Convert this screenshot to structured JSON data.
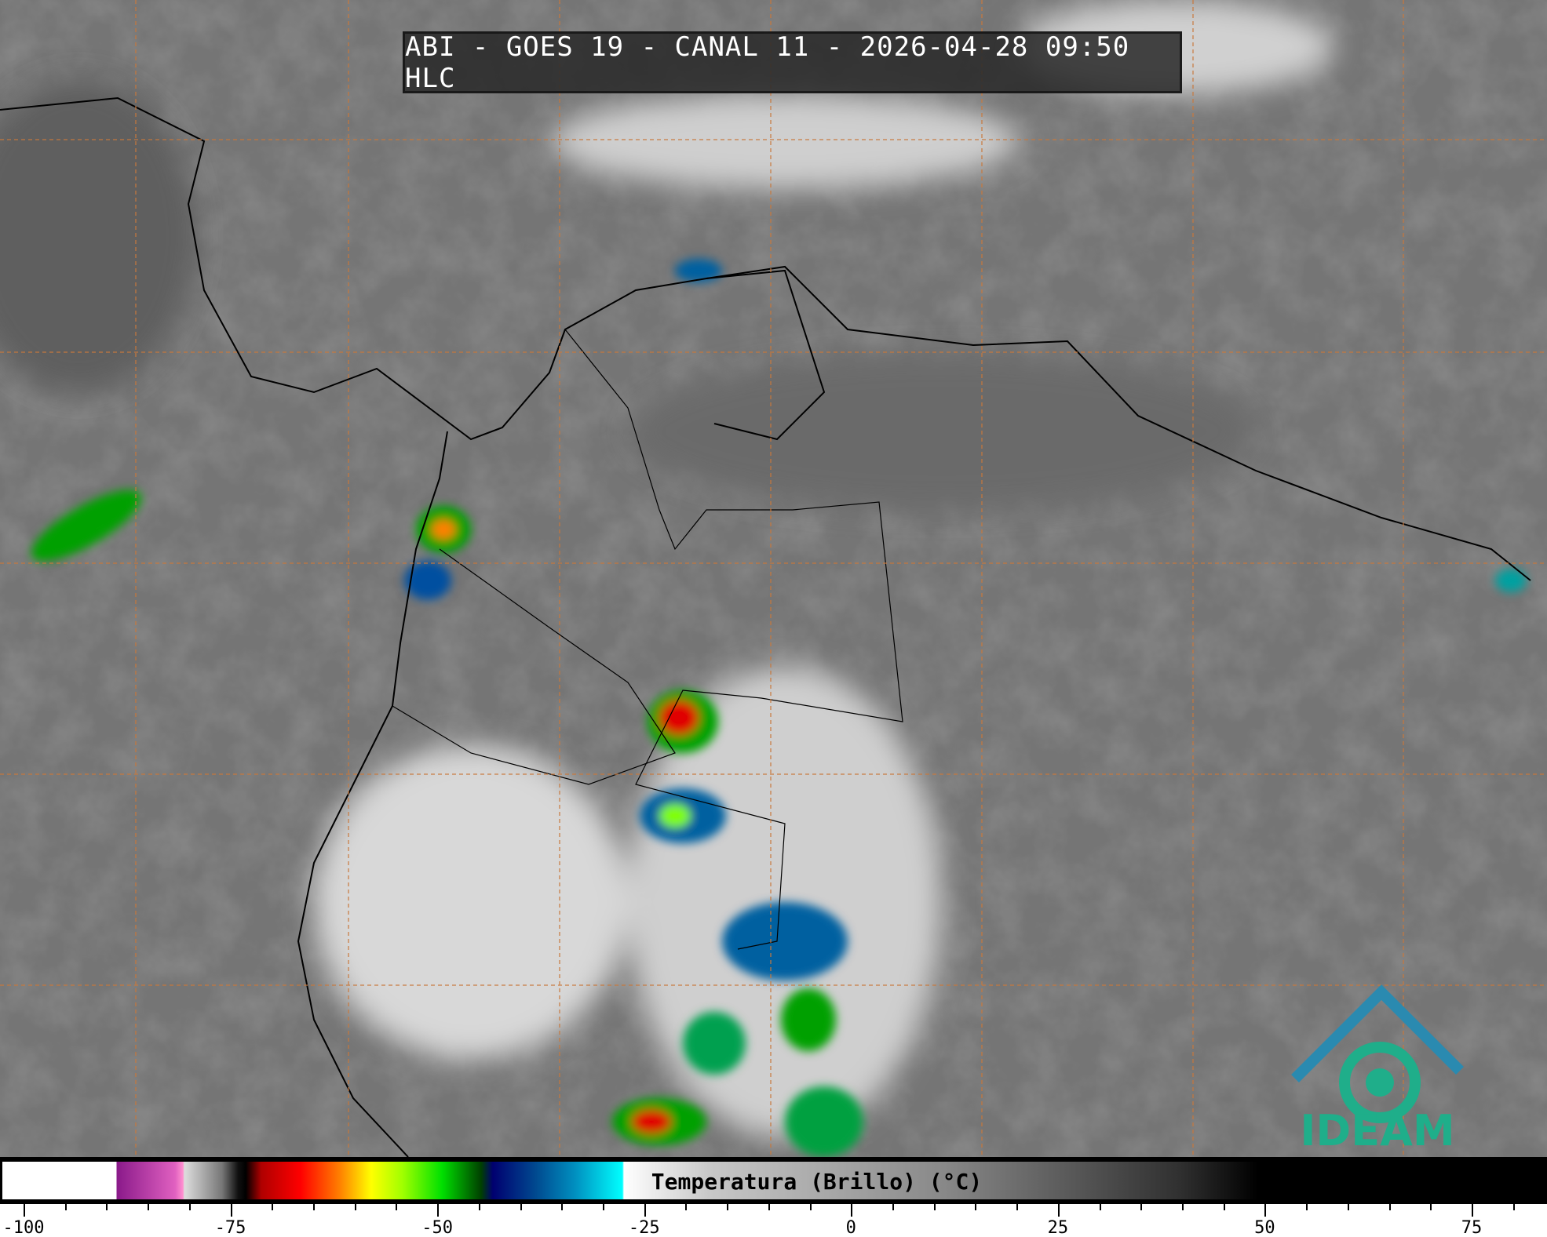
{
  "title": "ABI - GOES 19 - CANAL 11 - 2026-04-28 09:50 HLC",
  "colorbar": {
    "label": "Temperatura (Brillo) (°C)",
    "range": [
      -100,
      85
    ],
    "ticks": [
      {
        "v": -100,
        "t": "-100"
      },
      {
        "v": -75,
        "t": "-75"
      },
      {
        "v": -50,
        "t": "-50"
      },
      {
        "v": -25,
        "t": "-25"
      },
      {
        "v": 0,
        "t": "0"
      },
      {
        "v": 25,
        "t": "25"
      },
      {
        "v": 50,
        "t": "50"
      },
      {
        "v": 75,
        "t": "75"
      }
    ],
    "minor_step": 5
  },
  "logo": {
    "text": "IDEAM",
    "color": "#1fae8a"
  },
  "colors": {
    "grid": "#c8783c",
    "coast": "#000000"
  }
}
